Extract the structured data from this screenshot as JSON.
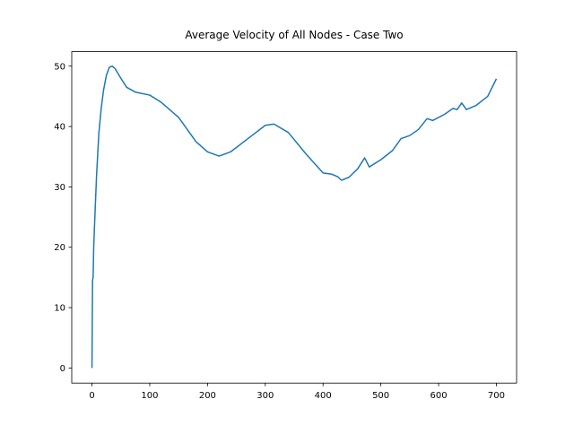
{
  "chart_data": {
    "type": "line",
    "title": "Average Velocity of All Nodes - Case Two",
    "x": [
      0,
      1,
      2,
      3,
      5,
      8,
      12,
      16,
      20,
      25,
      30,
      35,
      40,
      50,
      60,
      75,
      100,
      120,
      150,
      180,
      200,
      220,
      240,
      270,
      300,
      315,
      340,
      370,
      400,
      415,
      425,
      432,
      445,
      460,
      472,
      480,
      500,
      520,
      535,
      550,
      565,
      580,
      590,
      610,
      625,
      632,
      640,
      648,
      665,
      685,
      700
    ],
    "series": [
      {
        "color": "#1f77b4",
        "values": [
          0,
          14.5,
          15,
          20,
          25,
          32,
          39,
          43,
          46,
          48.5,
          49.8,
          50,
          49.6,
          48,
          46.5,
          45.7,
          45.2,
          44,
          41.5,
          37.5,
          35.8,
          35.1,
          35.8,
          38,
          40.2,
          40.4,
          39,
          35.5,
          32.3,
          32.1,
          31.7,
          31.1,
          31.6,
          33,
          34.8,
          33.3,
          34.5,
          36,
          38,
          38.5,
          39.5,
          41.3,
          41,
          42,
          43,
          42.8,
          43.9,
          42.8,
          43.5,
          45,
          47.9
        ]
      }
    ],
    "xlim": [
      -35,
      735
    ],
    "ylim": [
      -2.5,
      52.4
    ],
    "xticks": [
      0,
      100,
      200,
      300,
      400,
      500,
      600,
      700
    ],
    "yticks": [
      0,
      10,
      20,
      30,
      40,
      50
    ],
    "grid": false
  }
}
